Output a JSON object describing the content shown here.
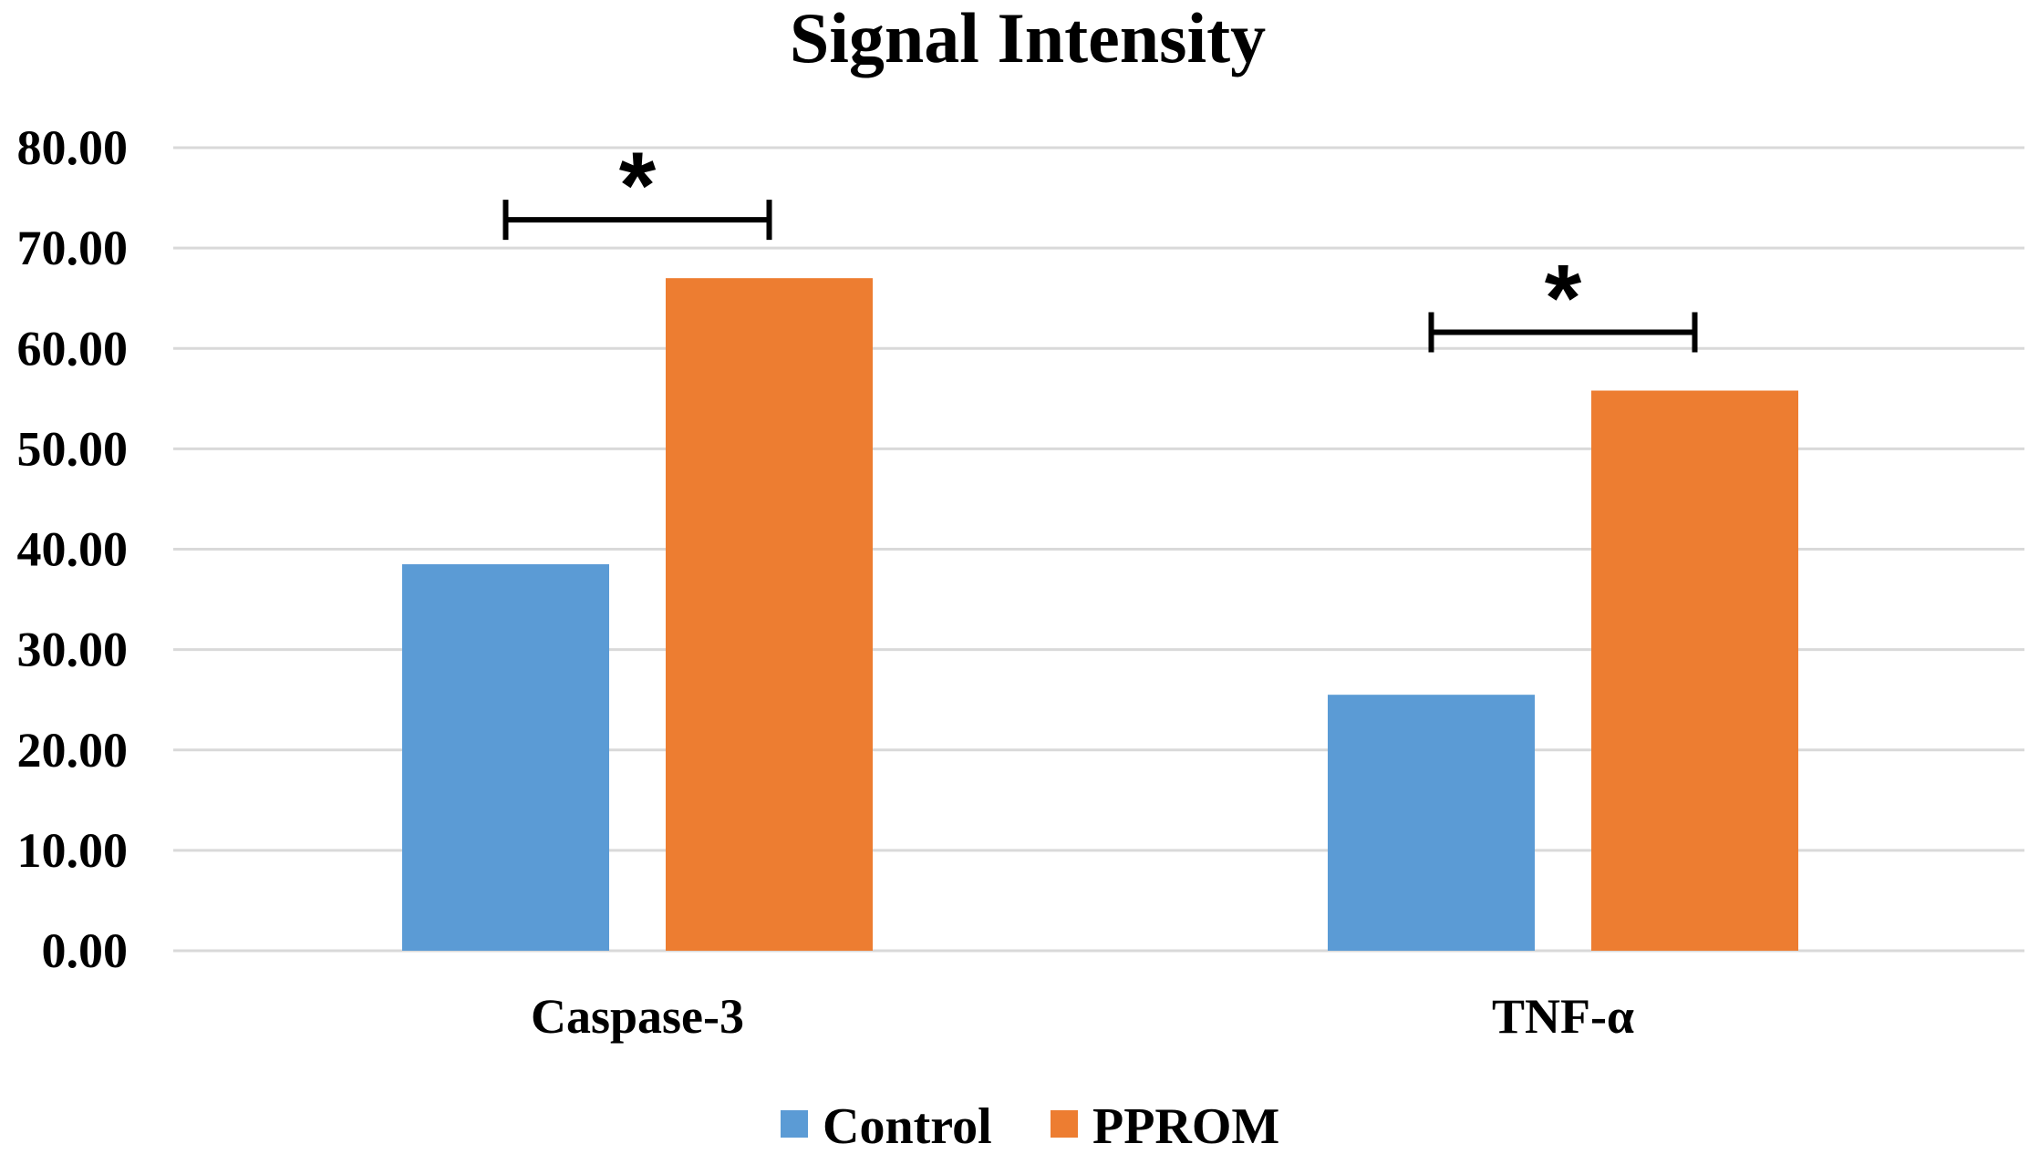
{
  "chart_data": {
    "type": "bar",
    "title": "Signal Intensity",
    "categories": [
      "Caspase-3",
      "TNF-α"
    ],
    "series": [
      {
        "name": "Control",
        "values": [
          38.5,
          25.5
        ]
      },
      {
        "name": "PPROM",
        "values": [
          67.0,
          55.8
        ]
      }
    ],
    "ylim": [
      0,
      80
    ],
    "yticks": [
      "0.00",
      "10.00",
      "20.00",
      "30.00",
      "40.00",
      "50.00",
      "60.00",
      "70.00",
      "80.00"
    ],
    "grid": true,
    "legend_position": "bottom",
    "annotations": [
      {
        "category": "Caspase-3",
        "label": "*"
      },
      {
        "category": "TNF-α",
        "label": "*"
      }
    ],
    "colors": {
      "Control": "#5b9bd5",
      "PPROM": "#ed7d31"
    }
  }
}
